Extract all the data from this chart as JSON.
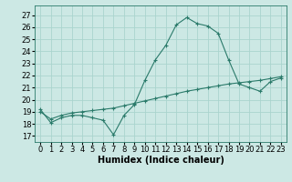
{
  "title": "",
  "xlabel": "Humidex (Indice chaleur)",
  "xlim": [
    -0.5,
    23.5
  ],
  "ylim": [
    16.5,
    27.8
  ],
  "yticks": [
    17,
    18,
    19,
    20,
    21,
    22,
    23,
    24,
    25,
    26,
    27
  ],
  "xticks": [
    0,
    1,
    2,
    3,
    4,
    5,
    6,
    7,
    8,
    9,
    10,
    11,
    12,
    13,
    14,
    15,
    16,
    17,
    18,
    19,
    20,
    21,
    22,
    23
  ],
  "line1_x": [
    0,
    1,
    2,
    3,
    4,
    5,
    6,
    7,
    8,
    9,
    10,
    11,
    12,
    13,
    14,
    15,
    16,
    17,
    18,
    19,
    20,
    21,
    22,
    23
  ],
  "line1_y": [
    19.2,
    18.1,
    18.5,
    18.7,
    18.7,
    18.5,
    18.3,
    17.1,
    18.7,
    19.6,
    21.6,
    23.3,
    24.5,
    26.2,
    26.8,
    26.3,
    26.1,
    25.5,
    23.3,
    21.3,
    21.0,
    20.7,
    21.5,
    21.8
  ],
  "line2_x": [
    0,
    1,
    2,
    3,
    4,
    5,
    6,
    7,
    8,
    9,
    10,
    11,
    12,
    13,
    14,
    15,
    16,
    17,
    18,
    19,
    20,
    21,
    22,
    23
  ],
  "line2_y": [
    19.0,
    18.4,
    18.7,
    18.9,
    19.0,
    19.1,
    19.2,
    19.3,
    19.5,
    19.7,
    19.9,
    20.1,
    20.3,
    20.5,
    20.7,
    20.85,
    21.0,
    21.15,
    21.3,
    21.4,
    21.5,
    21.6,
    21.75,
    21.9
  ],
  "line_color": "#2a7a6a",
  "bg_color": "#cce8e4",
  "grid_color": "#aad4ce",
  "label_fontsize": 7,
  "tick_fontsize": 6
}
